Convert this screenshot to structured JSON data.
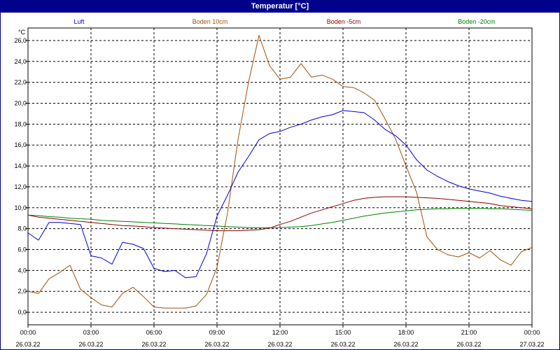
{
  "window": {
    "title": "Temperatur [°C]"
  },
  "colors": {
    "Luft": "#0000dd",
    "Boden 10cm": "#a0500a",
    "Boden -5cm": "#8b0000",
    "Boden -20cm": "#008000"
  },
  "chart_data": {
    "type": "line",
    "title": "Temperatur [°C]",
    "ylabel": "°C",
    "ylim": [
      -1.2,
      27.2
    ],
    "xlim": [
      "26.03.22 00:00",
      "27.03.22 00:00"
    ],
    "grid": true,
    "legend_position": "top",
    "yticks": [
      "0,0",
      "2,0",
      "4,0",
      "6,0",
      "8,0",
      "10,0",
      "12,0",
      "14,0",
      "16,0",
      "18,0",
      "20,0",
      "22,0",
      "24,0",
      "26,0"
    ],
    "xticks": [
      {
        "time": "00:00",
        "date": "26.03.22"
      },
      {
        "time": "03:00",
        "date": "26.03.22"
      },
      {
        "time": "06:00",
        "date": "26.03.22"
      },
      {
        "time": "09:00",
        "date": "26.03.22"
      },
      {
        "time": "12:00",
        "date": "26.03.22"
      },
      {
        "time": "15:00",
        "date": "26.03.22"
      },
      {
        "time": "18:00",
        "date": "26.03.22"
      },
      {
        "time": "21:00",
        "date": "26.03.22"
      },
      {
        "time": "00:00",
        "date": "27.03.22"
      }
    ],
    "x_hours": [
      0,
      0.5,
      1,
      1.5,
      2,
      2.5,
      3,
      3.5,
      4,
      4.5,
      5,
      5.5,
      6,
      6.5,
      7,
      7.5,
      8,
      8.5,
      9,
      9.5,
      10,
      10.5,
      11,
      11.5,
      12,
      12.5,
      13,
      13.5,
      14,
      14.5,
      15,
      15.5,
      16,
      16.5,
      17,
      17.5,
      18,
      18.5,
      19,
      19.5,
      20,
      20.5,
      21,
      21.5,
      22,
      22.5,
      23,
      23.5,
      24
    ],
    "series": [
      {
        "name": "Luft",
        "values": [
          7.6,
          6.9,
          8.6,
          8.6,
          8.5,
          8.4,
          5.4,
          5.2,
          4.6,
          6.7,
          6.5,
          6.1,
          4.2,
          3.9,
          4.0,
          3.3,
          3.4,
          5.6,
          9.2,
          11.2,
          13.4,
          14.9,
          16.5,
          17.1,
          17.3,
          17.7,
          18.0,
          18.4,
          18.7,
          18.9,
          19.3,
          19.2,
          19.1,
          18.4,
          17.5,
          16.9,
          16.0,
          14.6,
          13.6,
          13.0,
          12.5,
          12.1,
          11.8,
          11.6,
          11.4,
          11.1,
          10.9,
          10.7,
          10.6
        ]
      },
      {
        "name": "Boden 10cm",
        "values": [
          2.0,
          1.8,
          3.2,
          3.8,
          4.5,
          2.2,
          1.4,
          0.7,
          0.5,
          1.8,
          2.4,
          1.5,
          0.5,
          0.4,
          0.4,
          0.4,
          0.6,
          1.7,
          4.3,
          9.5,
          16.5,
          22.0,
          26.5,
          23.6,
          22.3,
          22.5,
          23.8,
          22.5,
          22.7,
          22.3,
          21.6,
          21.5,
          21.0,
          20.3,
          18.5,
          16.6,
          14.0,
          11.5,
          7.2,
          6.0,
          5.5,
          5.3,
          5.7,
          5.2,
          5.9,
          5.0,
          4.5,
          5.8,
          6.2
        ]
      },
      {
        "name": "Boden -5cm",
        "values": [
          9.3,
          9.1,
          9.0,
          8.9,
          8.8,
          8.7,
          8.6,
          8.5,
          8.4,
          8.3,
          8.25,
          8.2,
          8.1,
          8.05,
          8.0,
          7.95,
          7.9,
          7.85,
          7.8,
          7.8,
          7.8,
          7.85,
          7.9,
          8.05,
          8.4,
          8.7,
          9.1,
          9.5,
          9.8,
          10.1,
          10.4,
          10.7,
          10.9,
          11.0,
          11.05,
          11.05,
          11.05,
          11.0,
          10.95,
          10.9,
          10.8,
          10.7,
          10.6,
          10.5,
          10.4,
          10.2,
          10.1,
          10.0,
          9.9
        ]
      },
      {
        "name": "Boden -20cm",
        "values": [
          9.3,
          9.25,
          9.15,
          9.1,
          9.0,
          8.95,
          8.9,
          8.8,
          8.75,
          8.7,
          8.65,
          8.6,
          8.55,
          8.5,
          8.45,
          8.4,
          8.35,
          8.3,
          8.25,
          8.2,
          8.15,
          8.1,
          8.1,
          8.1,
          8.1,
          8.15,
          8.2,
          8.3,
          8.45,
          8.6,
          8.8,
          9.0,
          9.2,
          9.35,
          9.5,
          9.6,
          9.7,
          9.8,
          9.85,
          9.9,
          9.9,
          9.95,
          9.95,
          9.95,
          9.9,
          9.9,
          9.85,
          9.8,
          9.75
        ]
      }
    ]
  }
}
